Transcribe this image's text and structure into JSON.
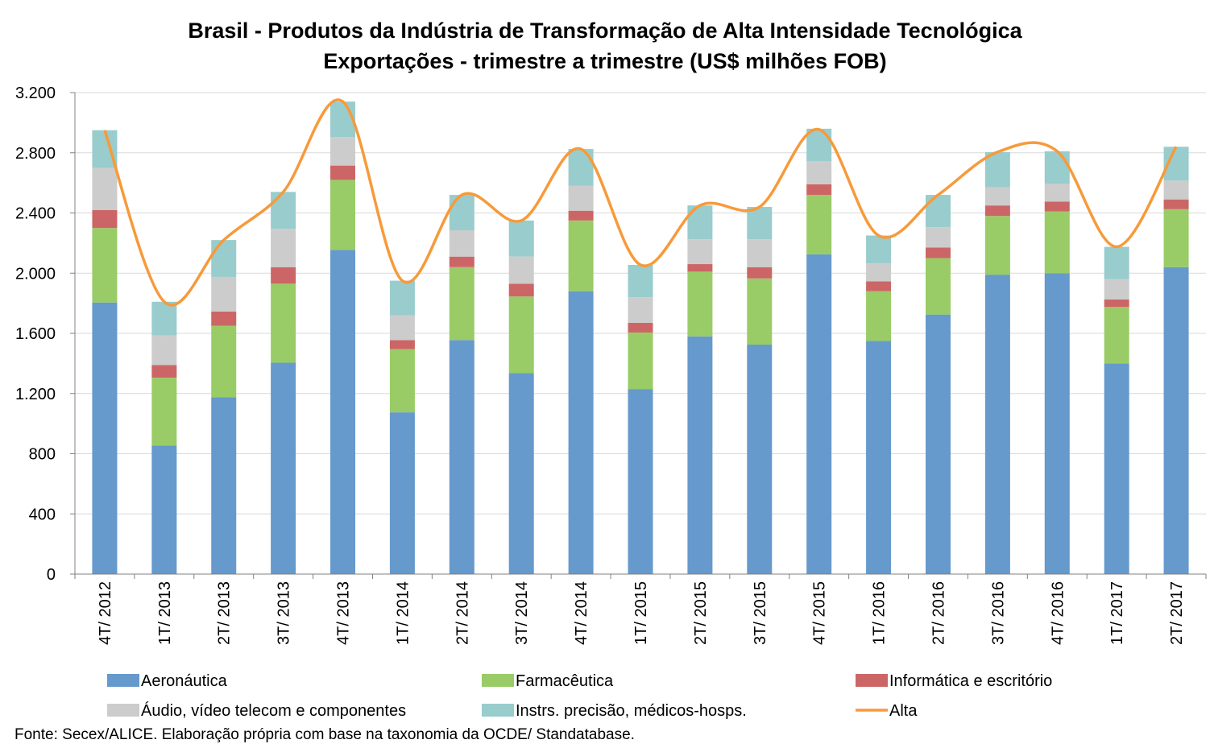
{
  "chart_data": {
    "type": "bar",
    "stacked": true,
    "title": "Brasil - Produtos da Indústria de Transformação de Alta Intensidade Tecnológica",
    "subtitle": "Exportações - trimestre a trimestre (US$ milhões FOB)",
    "xlabel": "",
    "ylabel": "",
    "ylim": [
      0,
      3200
    ],
    "yticks": [
      0,
      400,
      800,
      1200,
      1600,
      2000,
      2400,
      2800,
      3200
    ],
    "ytick_labels": [
      "0",
      "400",
      "800",
      "1.200",
      "1.600",
      "2.000",
      "2.400",
      "2.800",
      "3.200"
    ],
    "grid": true,
    "legend_position": "bottom",
    "categories": [
      "4T/ 2012",
      "1T/ 2013",
      "2T/ 2013",
      "3T/ 2013",
      "4T/ 2013",
      "1T/ 2014",
      "2T/ 2014",
      "3T/ 2014",
      "4T/ 2014",
      "1T/ 2015",
      "2T/ 2015",
      "3T/ 2015",
      "4T/ 2015",
      "1T/ 2016",
      "2T/ 2016",
      "3T/ 2016",
      "4T/ 2016",
      "1T/ 2017",
      "2T/ 2017"
    ],
    "series": [
      {
        "name": "Aeronáutica",
        "color": "#6699cc",
        "values": [
          1805,
          855,
          1175,
          1405,
          2155,
          1075,
          1555,
          1335,
          1880,
          1230,
          1580,
          1525,
          2125,
          1550,
          1725,
          1990,
          2000,
          1400,
          2040
        ]
      },
      {
        "name": "Farmacêutica",
        "color": "#99cc66",
        "values": [
          495,
          450,
          475,
          525,
          465,
          420,
          485,
          510,
          470,
          375,
          430,
          440,
          395,
          330,
          375,
          390,
          410,
          375,
          385
        ]
      },
      {
        "name": "Informática e escritório",
        "color": "#cc6666",
        "values": [
          120,
          85,
          95,
          110,
          95,
          60,
          70,
          85,
          65,
          65,
          50,
          75,
          70,
          65,
          70,
          70,
          65,
          50,
          65
        ]
      },
      {
        "name": "Áudio, vídeo telecom e componentes",
        "color": "#cccccc",
        "values": [
          280,
          195,
          230,
          255,
          190,
          165,
          175,
          180,
          165,
          170,
          165,
          185,
          155,
          120,
          135,
          120,
          120,
          135,
          125
        ]
      },
      {
        "name": "Instrs. precisão, médicos-hosps.",
        "color": "#99cccc",
        "values": [
          250,
          225,
          245,
          245,
          235,
          230,
          235,
          240,
          245,
          215,
          225,
          215,
          215,
          185,
          215,
          235,
          215,
          215,
          225
        ]
      }
    ],
    "line_series": {
      "name": "Alta",
      "color": "#f79a3a",
      "values": [
        2950,
        1810,
        2220,
        2540,
        3140,
        1950,
        2520,
        2350,
        2825,
        2055,
        2450,
        2440,
        2955,
        2250,
        2520,
        2805,
        2810,
        2175,
        2840
      ]
    }
  },
  "source_note": "Fonte: Secex/ALICE. Elaboração própria com base na taxonomia da OCDE/ Standatabase."
}
